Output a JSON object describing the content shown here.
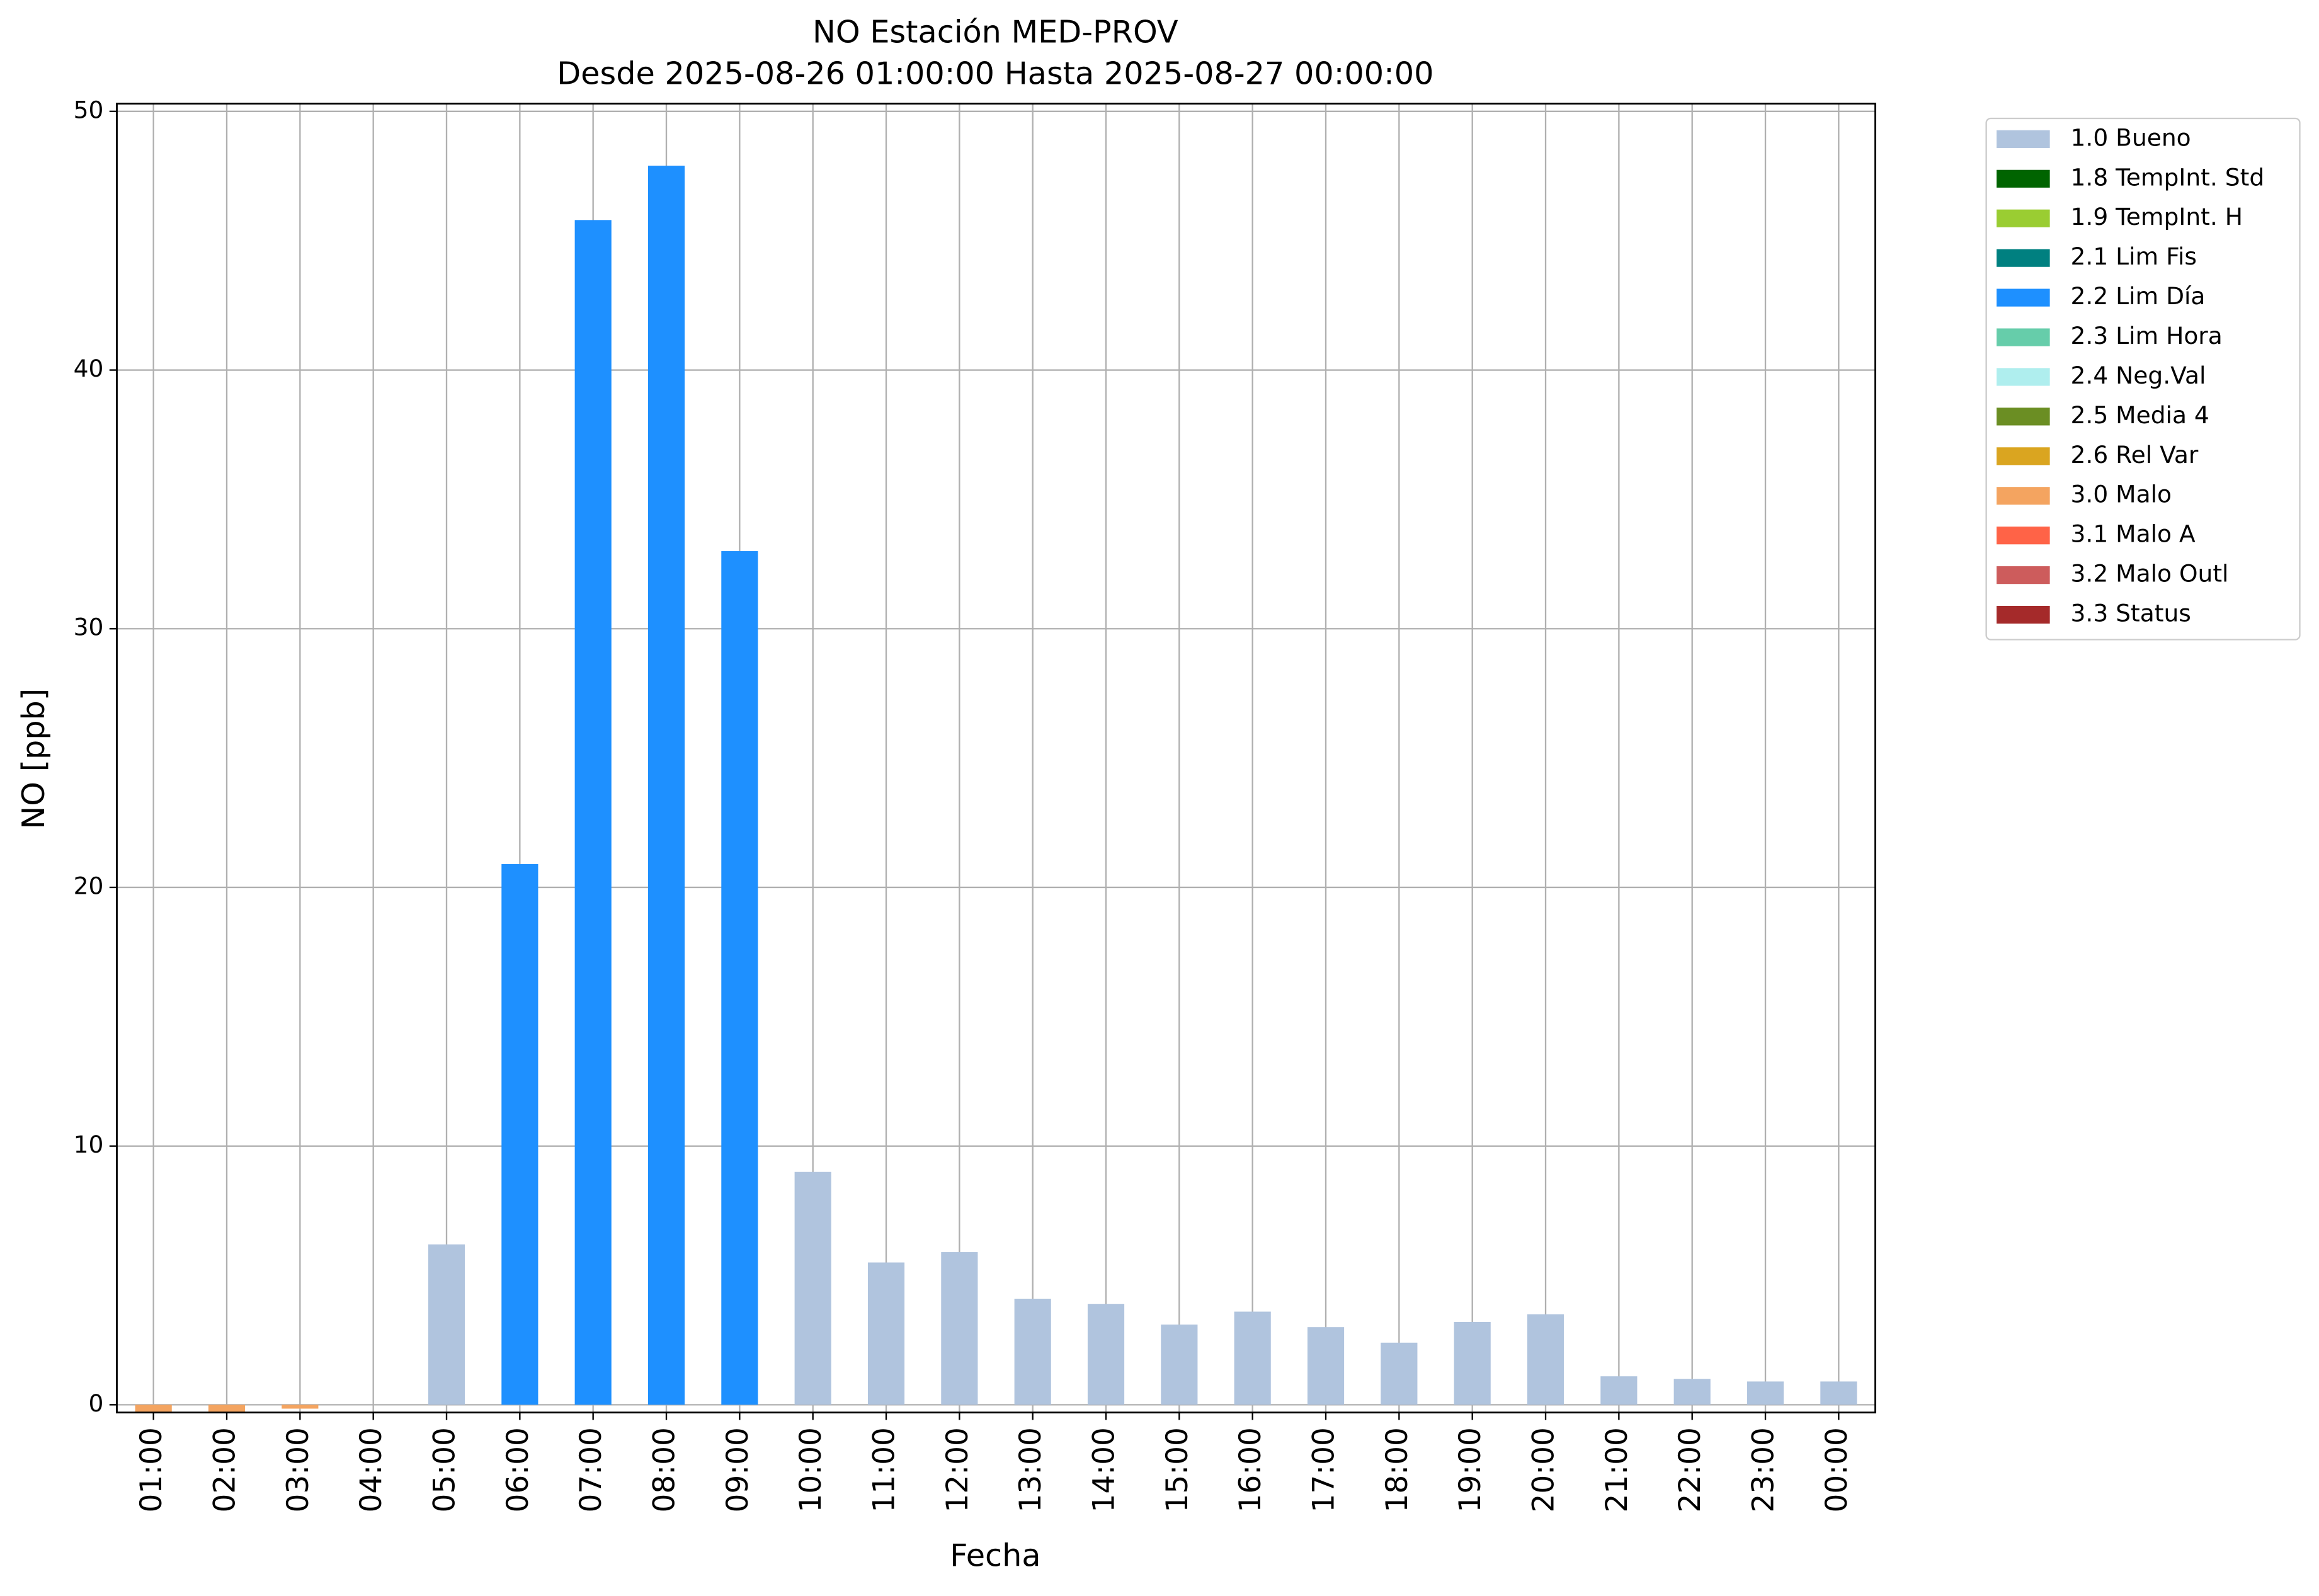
{
  "chart_data": {
    "type": "bar",
    "title": "NO Estación MED-PROV",
    "subtitle": "Desde 2025-08-26 01:00:00 Hasta 2025-08-27 00:00:00",
    "x_label": "Fecha",
    "y_label": "NO [ppb]",
    "categories": [
      "01:00",
      "02:00",
      "03:00",
      "04:00",
      "05:00",
      "06:00",
      "07:00",
      "08:00",
      "09:00",
      "10:00",
      "11:00",
      "12:00",
      "13:00",
      "14:00",
      "15:00",
      "16:00",
      "17:00",
      "18:00",
      "19:00",
      "20:00",
      "21:00",
      "22:00",
      "23:00",
      "00:00"
    ],
    "series": [
      {
        "name": "1.0 Bueno",
        "color": "#b0c4de",
        "values": [
          null,
          null,
          null,
          null,
          6.2,
          null,
          null,
          null,
          null,
          9.0,
          5.5,
          5.9,
          4.1,
          3.9,
          3.1,
          3.6,
          3.0,
          2.4,
          3.2,
          3.5,
          1.1,
          1.0,
          0.9,
          0.9
        ]
      },
      {
        "name": "1.8 TempInt. Std",
        "color": "#006400",
        "values": [
          null,
          null,
          null,
          null,
          null,
          null,
          null,
          null,
          null,
          null,
          null,
          null,
          null,
          null,
          null,
          null,
          null,
          null,
          null,
          null,
          null,
          null,
          null,
          null
        ]
      },
      {
        "name": "1.9 TempInt. H",
        "color": "#9acd32",
        "values": [
          null,
          null,
          null,
          null,
          null,
          null,
          null,
          null,
          null,
          null,
          null,
          null,
          null,
          null,
          null,
          null,
          null,
          null,
          null,
          null,
          null,
          null,
          null,
          null
        ]
      },
      {
        "name": "2.1 Lim Fis",
        "color": "#008080",
        "values": [
          null,
          null,
          null,
          null,
          null,
          null,
          null,
          null,
          null,
          null,
          null,
          null,
          null,
          null,
          null,
          null,
          null,
          null,
          null,
          null,
          null,
          null,
          null,
          null
        ]
      },
      {
        "name": "2.2 Lim Día",
        "color": "#1e90ff",
        "values": [
          null,
          null,
          null,
          null,
          null,
          20.9,
          45.8,
          47.9,
          33.0,
          null,
          null,
          null,
          null,
          null,
          null,
          null,
          null,
          null,
          null,
          null,
          null,
          null,
          null,
          null
        ]
      },
      {
        "name": "2.3 Lim Hora",
        "color": "#66cdaa",
        "values": [
          null,
          null,
          null,
          null,
          null,
          null,
          null,
          null,
          null,
          null,
          null,
          null,
          null,
          null,
          null,
          null,
          null,
          null,
          null,
          null,
          null,
          null,
          null,
          null
        ]
      },
      {
        "name": "2.4 Neg.Val",
        "color": "#afeeee",
        "values": [
          null,
          null,
          null,
          null,
          null,
          null,
          null,
          null,
          null,
          null,
          null,
          null,
          null,
          null,
          null,
          null,
          null,
          null,
          null,
          null,
          null,
          null,
          null,
          null
        ]
      },
      {
        "name": "2.5 Media 4",
        "color": "#6b8e23",
        "values": [
          null,
          null,
          null,
          null,
          null,
          null,
          null,
          null,
          null,
          null,
          null,
          null,
          null,
          null,
          null,
          null,
          null,
          null,
          null,
          null,
          null,
          null,
          null,
          null
        ]
      },
      {
        "name": "2.6 Rel Var",
        "color": "#daa520",
        "values": [
          null,
          null,
          null,
          null,
          null,
          null,
          null,
          null,
          null,
          null,
          null,
          null,
          null,
          null,
          null,
          null,
          null,
          null,
          null,
          null,
          null,
          null,
          null,
          null
        ]
      },
      {
        "name": "3.0 Malo",
        "color": "#f4a460",
        "values": [
          -0.3,
          -0.3,
          -0.15,
          null,
          null,
          null,
          null,
          null,
          null,
          null,
          null,
          null,
          null,
          null,
          null,
          null,
          null,
          null,
          null,
          null,
          null,
          null,
          null,
          null
        ]
      },
      {
        "name": "3.1 Malo A",
        "color": "#ff6347",
        "values": [
          null,
          null,
          null,
          null,
          null,
          null,
          null,
          null,
          null,
          null,
          null,
          null,
          null,
          null,
          null,
          null,
          null,
          null,
          null,
          null,
          null,
          null,
          null,
          null
        ]
      },
      {
        "name": "3.2 Malo Outl",
        "color": "#cd5c5c",
        "values": [
          null,
          null,
          null,
          null,
          null,
          null,
          null,
          null,
          null,
          null,
          null,
          null,
          null,
          null,
          null,
          null,
          null,
          null,
          null,
          null,
          null,
          null,
          null,
          null
        ]
      },
      {
        "name": "3.3 Status",
        "color": "#a52a2a",
        "values": [
          null,
          null,
          null,
          null,
          null,
          null,
          null,
          null,
          null,
          null,
          null,
          null,
          null,
          null,
          null,
          null,
          null,
          null,
          null,
          null,
          null,
          null,
          null,
          null
        ]
      }
    ],
    "ylim": [
      -0.3,
      50.3
    ],
    "yticks": [
      0,
      10,
      20,
      30,
      40,
      50
    ],
    "grid": true,
    "legend": "outside right"
  }
}
